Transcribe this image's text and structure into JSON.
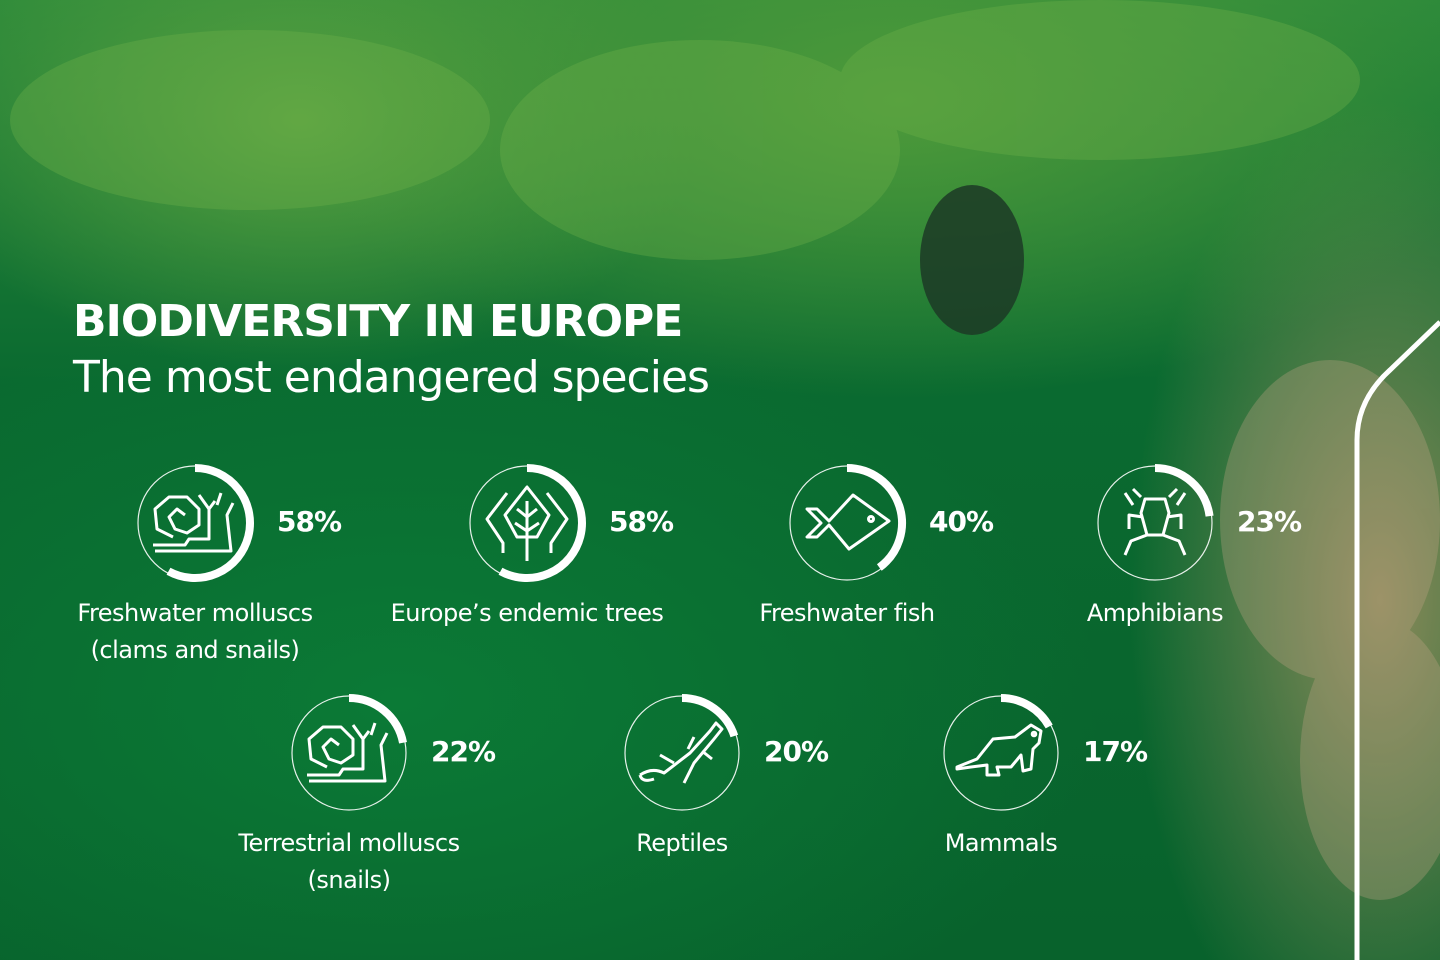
{
  "header": {
    "title": "BIODIVERSITY IN EUROPE",
    "subtitle": "The most endangered species"
  },
  "colors": {
    "background": "#0a6a30",
    "ring": "#ffffff",
    "text": "#ffffff"
  },
  "items": [
    {
      "label": "Freshwater molluscs",
      "label2": "(clams and snails)",
      "percent_text": "58%",
      "value": 58,
      "icon": "snail-icon"
    },
    {
      "label": "Europe’s endemic trees",
      "label2": "",
      "percent_text": "58%",
      "value": 58,
      "icon": "tree-icon"
    },
    {
      "label": "Freshwater fish",
      "label2": "",
      "percent_text": "40%",
      "value": 40,
      "icon": "fish-icon"
    },
    {
      "label": "Amphibians",
      "label2": "",
      "percent_text": "23%",
      "value": 23,
      "icon": "frog-icon"
    },
    {
      "label": "Terrestrial molluscs",
      "label2": "(snails)",
      "percent_text": "22%",
      "value": 22,
      "icon": "snail-icon"
    },
    {
      "label": "Reptiles",
      "label2": "",
      "percent_text": "20%",
      "value": 20,
      "icon": "lizard-icon"
    },
    {
      "label": "Mammals",
      "label2": "",
      "percent_text": "17%",
      "value": 17,
      "icon": "mammal-icon"
    }
  ]
}
